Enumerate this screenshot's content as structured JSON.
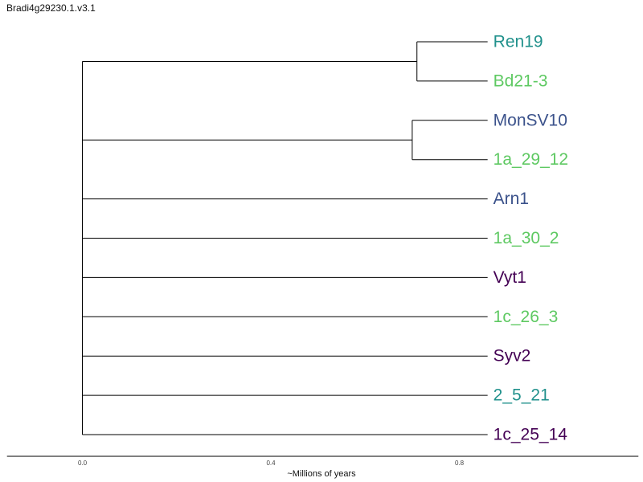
{
  "title": "Bradi4g29230.1.v3.1",
  "axis": {
    "label": "~Millions of years",
    "ticks": [
      0.0,
      0.4,
      0.8
    ],
    "tick_labels": [
      "0.0",
      "0.4",
      "0.8"
    ],
    "range": [
      -0.16,
      1.18
    ]
  },
  "colors": {
    "teal": "#21918c",
    "green": "#5ec962",
    "blue": "#3b528b",
    "purple": "#440154",
    "branch": "#000000"
  },
  "tree": {
    "root_x": 0.0,
    "clades": [
      {
        "node_x": 0.71,
        "leaves": [
          {
            "name": "Ren19",
            "color": "#21918c",
            "x": 0.86
          },
          {
            "name": "Bd21-3",
            "color": "#5ec962",
            "x": 0.86
          }
        ]
      },
      {
        "node_x": 0.7,
        "leaves": [
          {
            "name": "MonSV10",
            "color": "#3b528b",
            "x": 0.86
          },
          {
            "name": "1a_29_12",
            "color": "#5ec962",
            "x": 0.86
          }
        ]
      },
      {
        "leaves": [
          {
            "name": "Arn1",
            "color": "#3b528b",
            "x": 0.86
          }
        ]
      },
      {
        "leaves": [
          {
            "name": "1a_30_2",
            "color": "#5ec962",
            "x": 0.86
          }
        ]
      },
      {
        "leaves": [
          {
            "name": "Vyt1",
            "color": "#440154",
            "x": 0.86
          }
        ]
      },
      {
        "leaves": [
          {
            "name": "1c_26_3",
            "color": "#5ec962",
            "x": 0.86
          }
        ]
      },
      {
        "leaves": [
          {
            "name": "Syv2",
            "color": "#440154",
            "x": 0.86
          }
        ]
      },
      {
        "leaves": [
          {
            "name": "2_5_21",
            "color": "#21918c",
            "x": 0.86
          }
        ]
      },
      {
        "leaves": [
          {
            "name": "1c_25_14",
            "color": "#440154",
            "x": 0.86
          }
        ]
      }
    ]
  }
}
